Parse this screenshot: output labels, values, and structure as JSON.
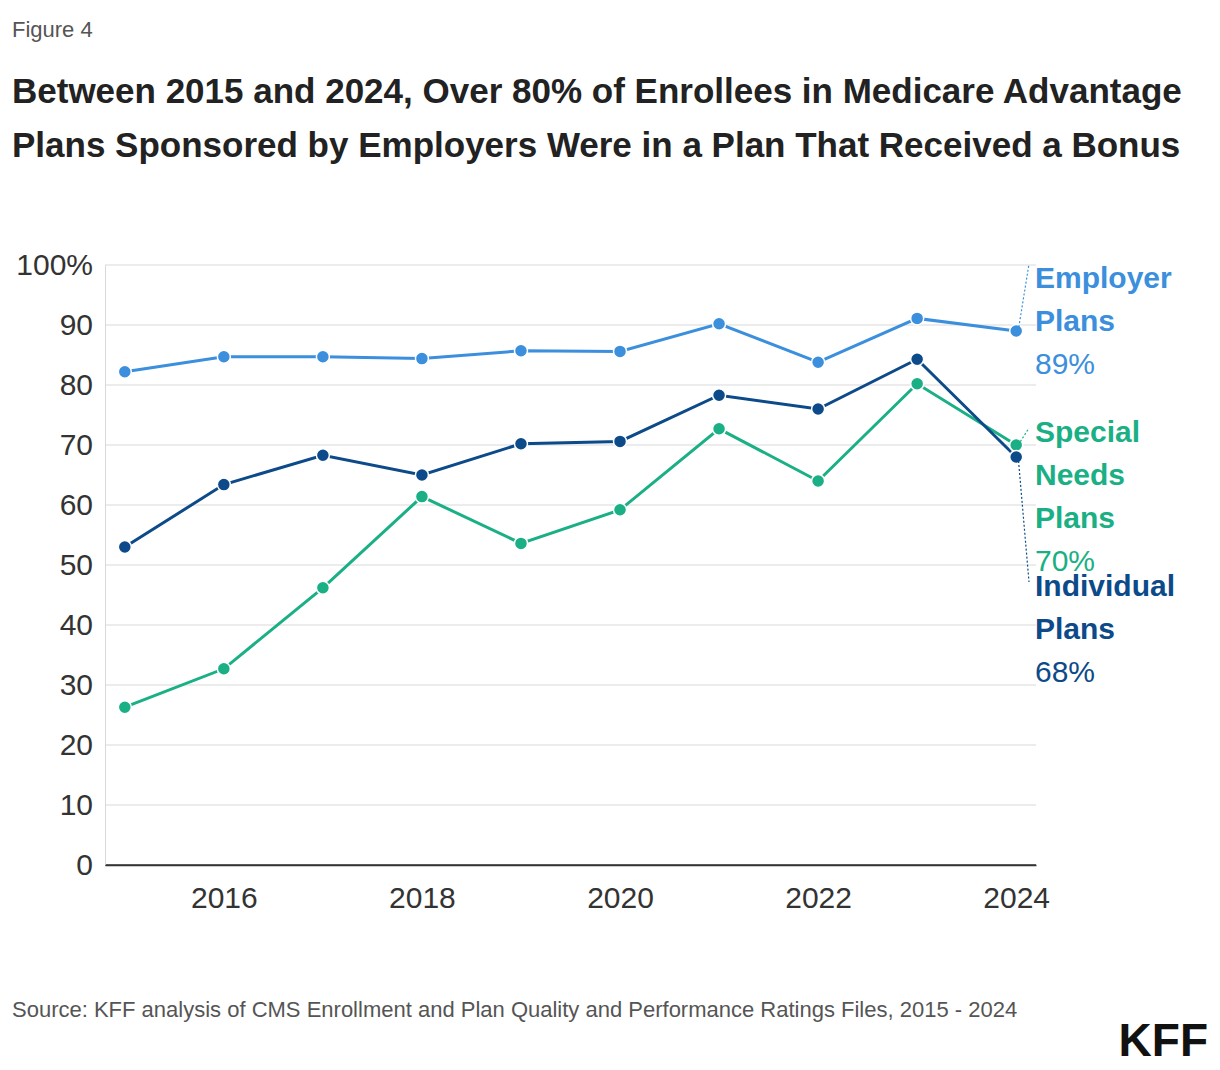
{
  "chart_data": {
    "type": "line",
    "figure_label": "Figure 4",
    "title": "Between 2015 and 2024, Over 80% of Enrollees in Medicare Advantage Plans Sponsored by Employers Were in a Plan That Received a Bonus",
    "source": "Source: KFF analysis of CMS Enrollment and Plan Quality and Performance Ratings Files, 2015 - 2024",
    "logo": "KFF",
    "x": [
      2015,
      2016,
      2017,
      2018,
      2019,
      2020,
      2021,
      2022,
      2023,
      2024
    ],
    "xlim": [
      2014.8,
      2024.2
    ],
    "xticks": [
      2016,
      2018,
      2020,
      2022,
      2024
    ],
    "ylim": [
      0,
      100
    ],
    "yticks": [
      0,
      10,
      20,
      30,
      40,
      50,
      60,
      70,
      80,
      90,
      {
        "value": 100,
        "label": "100%"
      }
    ],
    "grid": true,
    "marker": "circle",
    "series": [
      {
        "name": "Employer Plans",
        "color": "#3b8fdc",
        "values": [
          82.2,
          84.7,
          84.7,
          84.4,
          85.7,
          85.6,
          90.2,
          83.8,
          91.1,
          89
        ],
        "value_labels": [
          null,
          null,
          null,
          null,
          null,
          null,
          null,
          null,
          null,
          "89%"
        ]
      },
      {
        "name": "Special Needs Plans",
        "color": "#1aaf84",
        "values": [
          26.3,
          32.7,
          46.2,
          61.4,
          53.6,
          59.2,
          72.7,
          64,
          80.2,
          70
        ],
        "value_labels": [
          null,
          null,
          null,
          null,
          null,
          null,
          null,
          null,
          null,
          "70%"
        ]
      },
      {
        "name": "Individual Plans",
        "color": "#0c4a89",
        "values": [
          53,
          63.4,
          68.3,
          65,
          70.2,
          70.6,
          78.3,
          76,
          84.3,
          68
        ],
        "value_labels": [
          null,
          null,
          null,
          null,
          null,
          null,
          null,
          null,
          null,
          "68%"
        ]
      }
    ]
  }
}
